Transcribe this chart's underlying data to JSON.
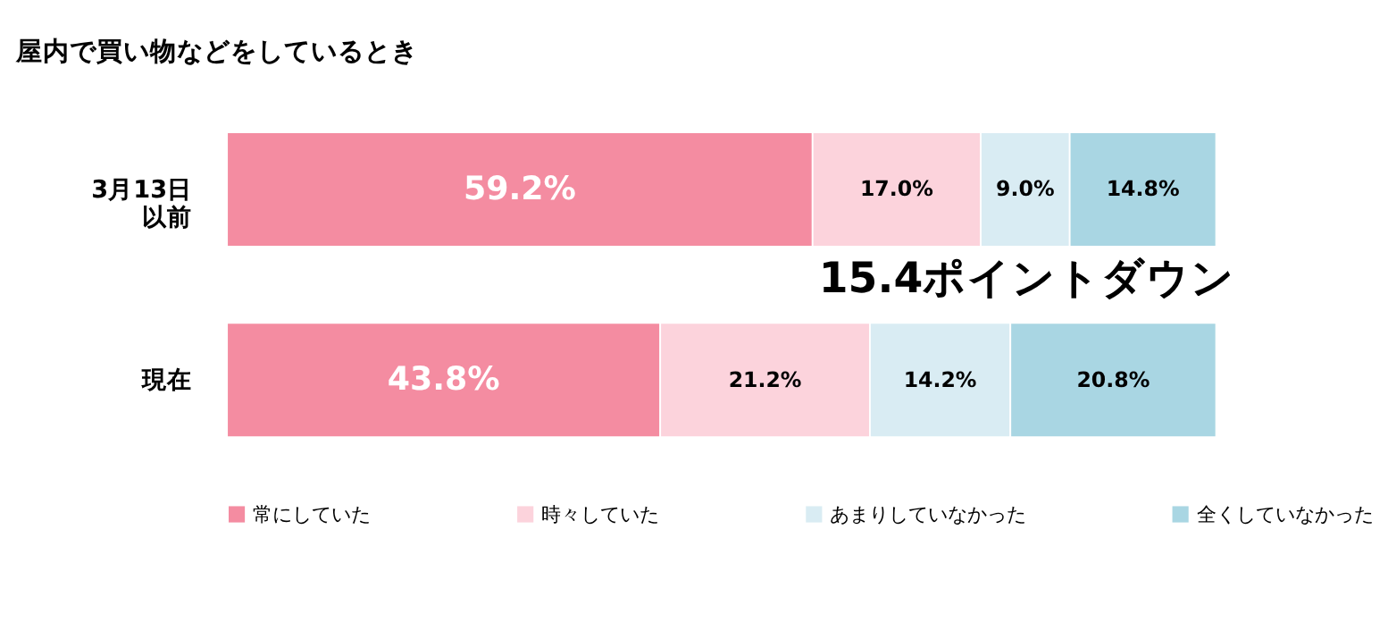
{
  "chart_data": {
    "type": "bar",
    "orientation": "horizontal",
    "stacked": true,
    "title": "屋内で買い物などをしているとき",
    "categories": [
      "3月13日以前",
      "現在"
    ],
    "series": [
      {
        "name": "常にしていた",
        "color": "#f48ca1",
        "values": [
          59.2,
          43.8
        ],
        "value_labels": [
          "59.2%",
          "43.8%"
        ]
      },
      {
        "name": "時々していた",
        "color": "#fcd3dc",
        "values": [
          17.0,
          21.2
        ],
        "value_labels": [
          "17.0%",
          "21.2%"
        ]
      },
      {
        "name": "あまりしていなかった",
        "color": "#d9ecf3",
        "values": [
          9.0,
          14.2
        ],
        "value_labels": [
          "9.0%",
          "14.2%"
        ]
      },
      {
        "name": "全くしていなかった",
        "color": "#a9d6e3",
        "values": [
          14.8,
          20.8
        ],
        "value_labels": [
          "14.8%",
          "20.8%"
        ]
      }
    ],
    "xlim": [
      0,
      100
    ],
    "tick_labels": "y",
    "grid": false,
    "legend": "bottom",
    "annotations": [
      "15.4ポイントダウン"
    ]
  }
}
